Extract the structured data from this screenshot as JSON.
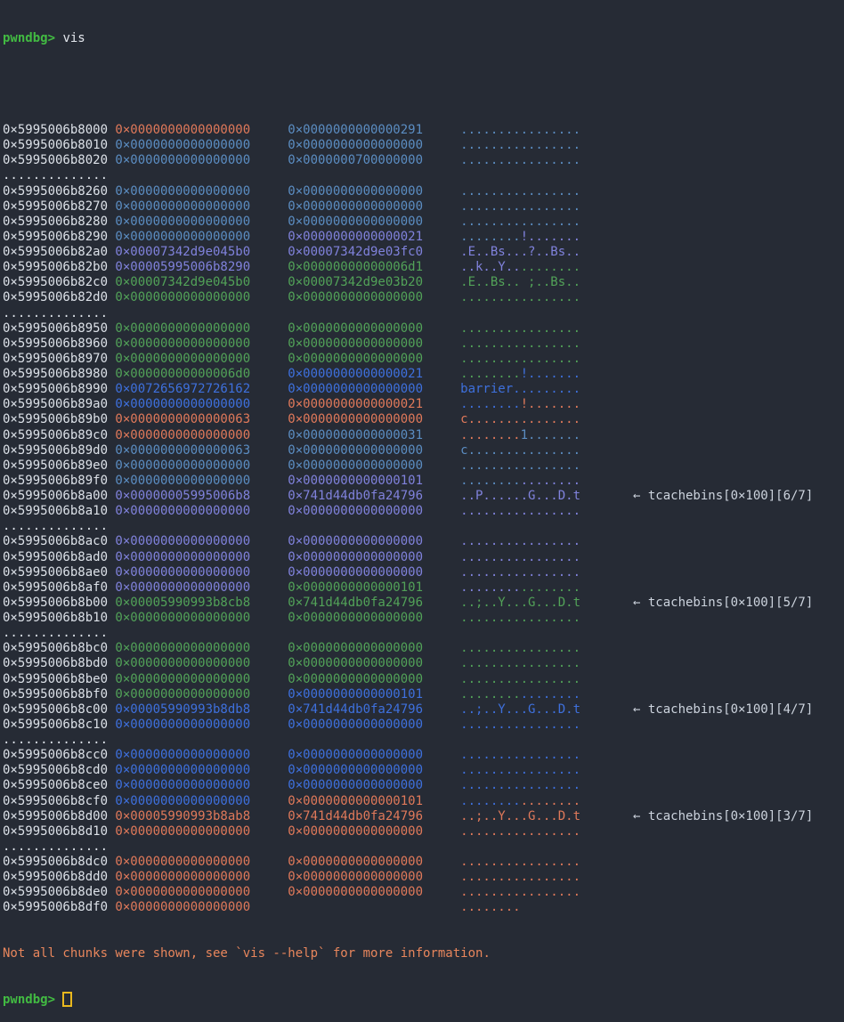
{
  "colors": {
    "background": "#262b35",
    "foreground": "#dce1e8",
    "annotation": "#ccd3dd",
    "command_text": "#e4e8ee",
    "prompt_green": "#42bb42",
    "warning": "#e8865c",
    "cursor_yellow": "#e9b81e",
    "orange": "#e0795a",
    "steel": "#5b8dc2",
    "blue": "#3e70dd",
    "purple": "#8082dc",
    "green": "#52a258"
  },
  "session": {
    "prompt": "pwndbg>",
    "command": "vis",
    "warning": "Not all chunks were shown, see `vis --help` for more information."
  },
  "separator_dots": "..............",
  "rows": [
    {
      "addr": "0×5995006b8000",
      "v": [
        [
          "0×0000000000000000",
          "orange"
        ],
        [
          "0×0000000000000291",
          "steel"
        ]
      ],
      "a": [
        [
          "................",
          "steel"
        ]
      ]
    },
    {
      "addr": "0×5995006b8010",
      "v": [
        [
          "0×0000000000000000",
          "steel"
        ],
        [
          "0×0000000000000000",
          "steel"
        ]
      ],
      "a": [
        [
          "................",
          "steel"
        ]
      ]
    },
    {
      "addr": "0×5995006b8020",
      "v": [
        [
          "0×0000000000000000",
          "steel"
        ],
        [
          "0×0000000700000000",
          "steel"
        ]
      ],
      "a": [
        [
          "................",
          "steel"
        ]
      ]
    },
    {
      "sep": true
    },
    {
      "addr": "0×5995006b8260",
      "v": [
        [
          "0×0000000000000000",
          "steel"
        ],
        [
          "0×0000000000000000",
          "steel"
        ]
      ],
      "a": [
        [
          "................",
          "steel"
        ]
      ]
    },
    {
      "addr": "0×5995006b8270",
      "v": [
        [
          "0×0000000000000000",
          "steel"
        ],
        [
          "0×0000000000000000",
          "steel"
        ]
      ],
      "a": [
        [
          "................",
          "steel"
        ]
      ]
    },
    {
      "addr": "0×5995006b8280",
      "v": [
        [
          "0×0000000000000000",
          "steel"
        ],
        [
          "0×0000000000000000",
          "steel"
        ]
      ],
      "a": [
        [
          "................",
          "steel"
        ]
      ]
    },
    {
      "addr": "0×5995006b8290",
      "v": [
        [
          "0×0000000000000000",
          "steel"
        ],
        [
          "0×0000000000000021",
          "purple"
        ]
      ],
      "a": [
        [
          "........",
          "steel"
        ],
        [
          "!.......",
          "purple"
        ]
      ]
    },
    {
      "addr": "0×5995006b82a0",
      "v": [
        [
          "0×00007342d9e045b0",
          "purple"
        ],
        [
          "0×00007342d9e03fc0",
          "purple"
        ]
      ],
      "a": [
        [
          ".E..Bs...?..Bs..",
          "purple"
        ]
      ]
    },
    {
      "addr": "0×5995006b82b0",
      "v": [
        [
          "0×00005995006b8290",
          "purple"
        ],
        [
          "0×00000000000006d1",
          "green"
        ]
      ],
      "a": [
        [
          "..k..Y..",
          "purple"
        ],
        [
          "........",
          "green"
        ]
      ]
    },
    {
      "addr": "0×5995006b82c0",
      "v": [
        [
          "0×00007342d9e045b0",
          "green"
        ],
        [
          "0×00007342d9e03b20",
          "green"
        ]
      ],
      "a": [
        [
          ".E..Bs.. ;..Bs..",
          "green"
        ]
      ]
    },
    {
      "addr": "0×5995006b82d0",
      "v": [
        [
          "0×0000000000000000",
          "green"
        ],
        [
          "0×0000000000000000",
          "green"
        ]
      ],
      "a": [
        [
          "................",
          "green"
        ]
      ]
    },
    {
      "sep": true
    },
    {
      "addr": "0×5995006b8950",
      "v": [
        [
          "0×0000000000000000",
          "green"
        ],
        [
          "0×0000000000000000",
          "green"
        ]
      ],
      "a": [
        [
          "................",
          "green"
        ]
      ]
    },
    {
      "addr": "0×5995006b8960",
      "v": [
        [
          "0×0000000000000000",
          "green"
        ],
        [
          "0×0000000000000000",
          "green"
        ]
      ],
      "a": [
        [
          "................",
          "green"
        ]
      ]
    },
    {
      "addr": "0×5995006b8970",
      "v": [
        [
          "0×0000000000000000",
          "green"
        ],
        [
          "0×0000000000000000",
          "green"
        ]
      ],
      "a": [
        [
          "................",
          "green"
        ]
      ]
    },
    {
      "addr": "0×5995006b8980",
      "v": [
        [
          "0×00000000000006d0",
          "green"
        ],
        [
          "0×0000000000000021",
          "blue"
        ]
      ],
      "a": [
        [
          "........",
          "green"
        ],
        [
          "!.......",
          "blue"
        ]
      ]
    },
    {
      "addr": "0×5995006b8990",
      "v": [
        [
          "0×0072656972726162",
          "blue"
        ],
        [
          "0×0000000000000000",
          "blue"
        ]
      ],
      "a": [
        [
          "barrier.........",
          "blue"
        ]
      ]
    },
    {
      "addr": "0×5995006b89a0",
      "v": [
        [
          "0×0000000000000000",
          "blue"
        ],
        [
          "0×0000000000000021",
          "orange"
        ]
      ],
      "a": [
        [
          "........",
          "blue"
        ],
        [
          "!.......",
          "orange"
        ]
      ]
    },
    {
      "addr": "0×5995006b89b0",
      "v": [
        [
          "0×0000000000000063",
          "orange"
        ],
        [
          "0×0000000000000000",
          "orange"
        ]
      ],
      "a": [
        [
          "c...............",
          "orange"
        ]
      ]
    },
    {
      "addr": "0×5995006b89c0",
      "v": [
        [
          "0×0000000000000000",
          "orange"
        ],
        [
          "0×0000000000000031",
          "steel"
        ]
      ],
      "a": [
        [
          "........",
          "orange"
        ],
        [
          "1.......",
          "steel"
        ]
      ]
    },
    {
      "addr": "0×5995006b89d0",
      "v": [
        [
          "0×0000000000000063",
          "steel"
        ],
        [
          "0×0000000000000000",
          "steel"
        ]
      ],
      "a": [
        [
          "c...............",
          "steel"
        ]
      ]
    },
    {
      "addr": "0×5995006b89e0",
      "v": [
        [
          "0×0000000000000000",
          "steel"
        ],
        [
          "0×0000000000000000",
          "steel"
        ]
      ],
      "a": [
        [
          "................",
          "steel"
        ]
      ]
    },
    {
      "addr": "0×5995006b89f0",
      "v": [
        [
          "0×0000000000000000",
          "steel"
        ],
        [
          "0×0000000000000101",
          "purple"
        ]
      ],
      "a": [
        [
          "........",
          "steel"
        ],
        [
          "........",
          "purple"
        ]
      ]
    },
    {
      "addr": "0×5995006b8a00",
      "v": [
        [
          "0×00000005995006b8",
          "purple"
        ],
        [
          "0×741d44db0fa24796",
          "purple"
        ]
      ],
      "a": [
        [
          "..P......G...D.t",
          "purple"
        ]
      ],
      "note": "← tcachebins[0×100][6/7]"
    },
    {
      "addr": "0×5995006b8a10",
      "v": [
        [
          "0×0000000000000000",
          "purple"
        ],
        [
          "0×0000000000000000",
          "purple"
        ]
      ],
      "a": [
        [
          "................",
          "purple"
        ]
      ]
    },
    {
      "sep": true
    },
    {
      "addr": "0×5995006b8ac0",
      "v": [
        [
          "0×0000000000000000",
          "purple"
        ],
        [
          "0×0000000000000000",
          "purple"
        ]
      ],
      "a": [
        [
          "................",
          "purple"
        ]
      ]
    },
    {
      "addr": "0×5995006b8ad0",
      "v": [
        [
          "0×0000000000000000",
          "purple"
        ],
        [
          "0×0000000000000000",
          "purple"
        ]
      ],
      "a": [
        [
          "................",
          "purple"
        ]
      ]
    },
    {
      "addr": "0×5995006b8ae0",
      "v": [
        [
          "0×0000000000000000",
          "purple"
        ],
        [
          "0×0000000000000000",
          "purple"
        ]
      ],
      "a": [
        [
          "................",
          "purple"
        ]
      ]
    },
    {
      "addr": "0×5995006b8af0",
      "v": [
        [
          "0×0000000000000000",
          "purple"
        ],
        [
          "0×0000000000000101",
          "green"
        ]
      ],
      "a": [
        [
          "........",
          "purple"
        ],
        [
          "........",
          "green"
        ]
      ]
    },
    {
      "addr": "0×5995006b8b00",
      "v": [
        [
          "0×00005990993b8cb8",
          "green"
        ],
        [
          "0×741d44db0fa24796",
          "green"
        ]
      ],
      "a": [
        [
          "..;..Y...G...D.t",
          "green"
        ]
      ],
      "note": "← tcachebins[0×100][5/7]"
    },
    {
      "addr": "0×5995006b8b10",
      "v": [
        [
          "0×0000000000000000",
          "green"
        ],
        [
          "0×0000000000000000",
          "green"
        ]
      ],
      "a": [
        [
          "................",
          "green"
        ]
      ]
    },
    {
      "sep": true
    },
    {
      "addr": "0×5995006b8bc0",
      "v": [
        [
          "0×0000000000000000",
          "green"
        ],
        [
          "0×0000000000000000",
          "green"
        ]
      ],
      "a": [
        [
          "................",
          "green"
        ]
      ]
    },
    {
      "addr": "0×5995006b8bd0",
      "v": [
        [
          "0×0000000000000000",
          "green"
        ],
        [
          "0×0000000000000000",
          "green"
        ]
      ],
      "a": [
        [
          "................",
          "green"
        ]
      ]
    },
    {
      "addr": "0×5995006b8be0",
      "v": [
        [
          "0×0000000000000000",
          "green"
        ],
        [
          "0×0000000000000000",
          "green"
        ]
      ],
      "a": [
        [
          "................",
          "green"
        ]
      ]
    },
    {
      "addr": "0×5995006b8bf0",
      "v": [
        [
          "0×0000000000000000",
          "green"
        ],
        [
          "0×0000000000000101",
          "blue"
        ]
      ],
      "a": [
        [
          "........",
          "green"
        ],
        [
          "........",
          "blue"
        ]
      ]
    },
    {
      "addr": "0×5995006b8c00",
      "v": [
        [
          "0×00005990993b8db8",
          "blue"
        ],
        [
          "0×741d44db0fa24796",
          "blue"
        ]
      ],
      "a": [
        [
          "..;..Y...G...D.t",
          "blue"
        ]
      ],
      "note": "← tcachebins[0×100][4/7]"
    },
    {
      "addr": "0×5995006b8c10",
      "v": [
        [
          "0×0000000000000000",
          "blue"
        ],
        [
          "0×0000000000000000",
          "blue"
        ]
      ],
      "a": [
        [
          "................",
          "blue"
        ]
      ]
    },
    {
      "sep": true
    },
    {
      "addr": "0×5995006b8cc0",
      "v": [
        [
          "0×0000000000000000",
          "blue"
        ],
        [
          "0×0000000000000000",
          "blue"
        ]
      ],
      "a": [
        [
          "................",
          "blue"
        ]
      ]
    },
    {
      "addr": "0×5995006b8cd0",
      "v": [
        [
          "0×0000000000000000",
          "blue"
        ],
        [
          "0×0000000000000000",
          "blue"
        ]
      ],
      "a": [
        [
          "................",
          "blue"
        ]
      ]
    },
    {
      "addr": "0×5995006b8ce0",
      "v": [
        [
          "0×0000000000000000",
          "blue"
        ],
        [
          "0×0000000000000000",
          "blue"
        ]
      ],
      "a": [
        [
          "................",
          "blue"
        ]
      ]
    },
    {
      "addr": "0×5995006b8cf0",
      "v": [
        [
          "0×0000000000000000",
          "blue"
        ],
        [
          "0×0000000000000101",
          "orange"
        ]
      ],
      "a": [
        [
          "........",
          "blue"
        ],
        [
          "........",
          "orange"
        ]
      ]
    },
    {
      "addr": "0×5995006b8d00",
      "v": [
        [
          "0×00005990993b8ab8",
          "orange"
        ],
        [
          "0×741d44db0fa24796",
          "orange"
        ]
      ],
      "a": [
        [
          "..;..Y...G...D.t",
          "orange"
        ]
      ],
      "note": "← tcachebins[0×100][3/7]"
    },
    {
      "addr": "0×5995006b8d10",
      "v": [
        [
          "0×0000000000000000",
          "orange"
        ],
        [
          "0×0000000000000000",
          "orange"
        ]
      ],
      "a": [
        [
          "................",
          "orange"
        ]
      ]
    },
    {
      "sep": true
    },
    {
      "addr": "0×5995006b8dc0",
      "v": [
        [
          "0×0000000000000000",
          "orange"
        ],
        [
          "0×0000000000000000",
          "orange"
        ]
      ],
      "a": [
        [
          "................",
          "orange"
        ]
      ]
    },
    {
      "addr": "0×5995006b8dd0",
      "v": [
        [
          "0×0000000000000000",
          "orange"
        ],
        [
          "0×0000000000000000",
          "orange"
        ]
      ],
      "a": [
        [
          "................",
          "orange"
        ]
      ]
    },
    {
      "addr": "0×5995006b8de0",
      "v": [
        [
          "0×0000000000000000",
          "orange"
        ],
        [
          "0×0000000000000000",
          "orange"
        ]
      ],
      "a": [
        [
          "................",
          "orange"
        ]
      ]
    },
    {
      "addr": "0×5995006b8df0",
      "v": [
        [
          "0×0000000000000000",
          "orange"
        ],
        [
          "",
          ""
        ]
      ],
      "a": [
        [
          "........",
          "orange"
        ]
      ]
    }
  ]
}
